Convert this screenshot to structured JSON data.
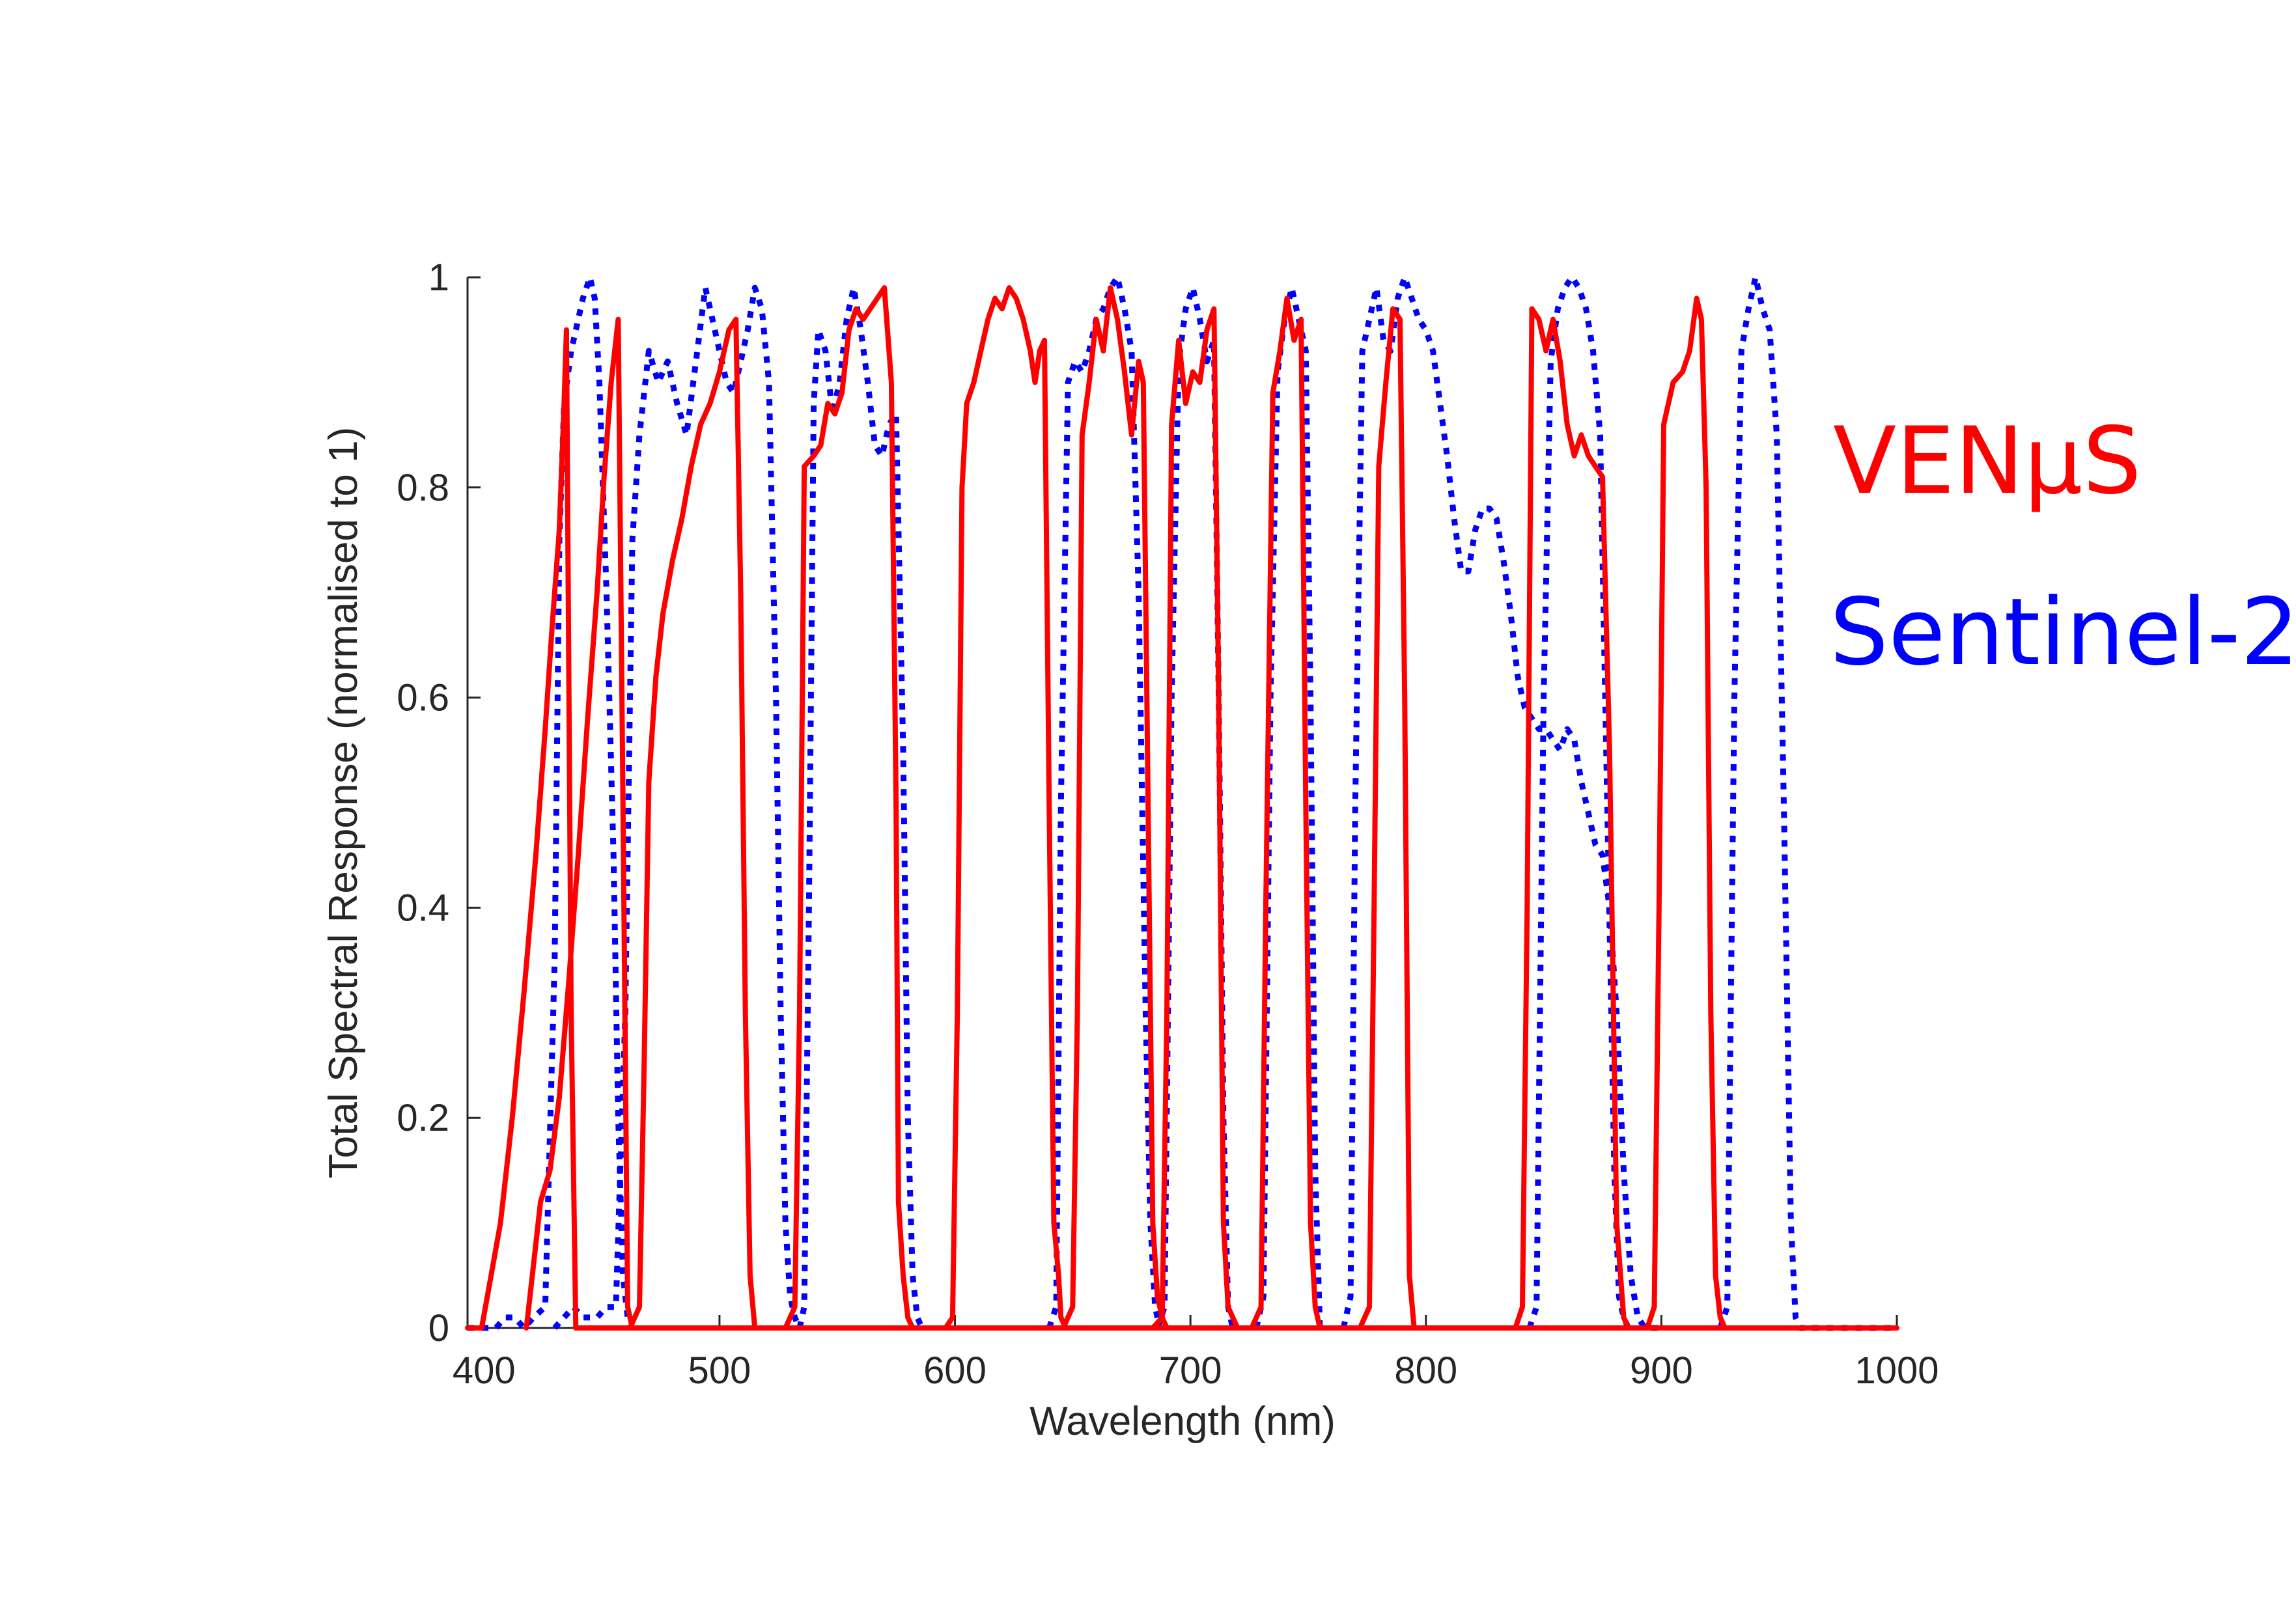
{
  "chart_data": {
    "type": "line",
    "title": "",
    "xlabel": "Wavelength (nm)",
    "ylabel": "Total Spectral Response (normalised to 1)",
    "xlim": [
      393,
      1000
    ],
    "ylim": [
      0,
      1
    ],
    "x_ticks": [
      400,
      500,
      600,
      700,
      800,
      900,
      1000
    ],
    "x_tick_labels": [
      "400",
      "500",
      "600",
      "700",
      "800",
      "900",
      "1000"
    ],
    "y_ticks": [
      0,
      0.2,
      0.4,
      0.6,
      0.8,
      1
    ],
    "y_tick_labels": [
      "0",
      "0.2",
      "0.4",
      "0.6",
      "0.8",
      "1"
    ],
    "grid": false,
    "legend_position": "right",
    "series": [
      {
        "name": "VENμS",
        "color": "#ff0000",
        "line_style": "solid",
        "bands": [
          {
            "x": [
              393,
              399,
              403,
              407,
              412,
              417,
              422,
              426,
              429,
              432,
              434,
              435,
              437,
              439,
              441,
              1000
            ],
            "y": [
              0,
              0,
              0.05,
              0.1,
              0.2,
              0.32,
              0.45,
              0.57,
              0.67,
              0.76,
              0.88,
              0.95,
              0.3,
              0,
              0,
              0
            ]
          },
          {
            "x": [
              418,
              421,
              424,
              428,
              432,
              436,
              440,
              444,
              448,
              451,
              454,
              457,
              459,
              461,
              463
            ],
            "y": [
              0,
              0.06,
              0.12,
              0.15,
              0.22,
              0.33,
              0.45,
              0.58,
              0.7,
              0.81,
              0.9,
              0.96,
              0.5,
              0.02,
              0
            ]
          },
          {
            "x": [
              462,
              466,
              468,
              470,
              473,
              476,
              480,
              484,
              488,
              492,
              496,
              500,
              504,
              507,
              509,
              511,
              513,
              515
            ],
            "y": [
              0,
              0.02,
              0.25,
              0.52,
              0.62,
              0.68,
              0.73,
              0.77,
              0.82,
              0.86,
              0.88,
              0.91,
              0.95,
              0.96,
              0.7,
              0.3,
              0.05,
              0
            ]
          },
          {
            "x": [
              528,
              532,
              534,
              536,
              540,
              543,
              546,
              549,
              552,
              555,
              558,
              561,
              564,
              567,
              570,
              573,
              575,
              576,
              578,
              580,
              582
            ],
            "y": [
              0,
              0.02,
              0.3,
              0.82,
              0.83,
              0.84,
              0.88,
              0.87,
              0.89,
              0.95,
              0.97,
              0.96,
              0.97,
              0.98,
              0.99,
              0.9,
              0.5,
              0.12,
              0.05,
              0.01,
              0
            ]
          },
          {
            "x": [
              596,
              599,
              601,
              603,
              605,
              608,
              611,
              614,
              617,
              620,
              623,
              626,
              629,
              632,
              634,
              636,
              638,
              640,
              642,
              644,
              645,
              647
            ],
            "y": [
              0,
              0.01,
              0.3,
              0.8,
              0.88,
              0.9,
              0.93,
              0.96,
              0.98,
              0.97,
              0.99,
              0.98,
              0.96,
              0.93,
              0.9,
              0.93,
              0.94,
              0.5,
              0.1,
              0.05,
              0.01,
              0
            ]
          },
          {
            "x": [
              646,
              650,
              652,
              654,
              657,
              660,
              663,
              666,
              669,
              672,
              675,
              678,
              680,
              682,
              684,
              686,
              688,
              690,
              692
            ],
            "y": [
              0,
              0.02,
              0.3,
              0.85,
              0.9,
              0.96,
              0.93,
              0.99,
              0.96,
              0.91,
              0.85,
              0.92,
              0.9,
              0.5,
              0.1,
              0.03,
              0.01,
              0,
              0
            ]
          },
          {
            "x": [
              684,
              688,
              690,
              692,
              695,
              698,
              701,
              704,
              707,
              710,
              712,
              714,
              716,
              718,
              720
            ],
            "y": [
              0,
              0.01,
              0.3,
              0.86,
              0.94,
              0.88,
              0.91,
              0.9,
              0.95,
              0.97,
              0.6,
              0.1,
              0.02,
              0.01,
              0
            ]
          },
          {
            "x": [
              726,
              730,
              732,
              735,
              738,
              741,
              744,
              747,
              749,
              751,
              753,
              755
            ],
            "y": [
              0,
              0.02,
              0.4,
              0.89,
              0.93,
              0.98,
              0.94,
              0.96,
              0.5,
              0.1,
              0.02,
              0
            ]
          },
          {
            "x": [
              772,
              776,
              778,
              780,
              783,
              786,
              789,
              791,
              793,
              795
            ],
            "y": [
              0,
              0.02,
              0.4,
              0.82,
              0.9,
              0.97,
              0.96,
              0.6,
              0.05,
              0
            ]
          },
          {
            "x": [
              838,
              841,
              843,
              845,
              848,
              851,
              854,
              857,
              860,
              863,
              866,
              869,
              872,
              875,
              878,
              881,
              884,
              886
            ],
            "y": [
              0,
              0.02,
              0.4,
              0.97,
              0.96,
              0.93,
              0.96,
              0.92,
              0.86,
              0.83,
              0.85,
              0.83,
              0.82,
              0.81,
              0.55,
              0.1,
              0.01,
              0
            ]
          },
          {
            "x": [
              894,
              897,
              899,
              901,
              905,
              909,
              912,
              915,
              917,
              919,
              921,
              923,
              925,
              927,
              929,
              931,
              933,
              935,
              937,
              940
            ],
            "y": [
              0,
              0.02,
              0.4,
              0.86,
              0.9,
              0.91,
              0.93,
              0.98,
              0.96,
              0.8,
              0.3,
              0.05,
              0.01,
              0,
              0,
              0,
              0,
              0,
              0,
              0
            ]
          }
        ]
      },
      {
        "name": "Sentinel-2",
        "color": "#0000ff",
        "line_style": "dotted",
        "bands": [
          {
            "x": [
              393,
              400,
              405,
              409,
              413,
              417,
              421,
              426,
              430,
              432,
              434,
              437,
              440,
              442,
              445,
              447,
              449,
              452,
              455,
              457,
              459,
              461,
              463
            ],
            "y": [
              0,
              0,
              0,
              0.01,
              0.01,
              0,
              0.01,
              0.02,
              0.35,
              0.75,
              0.88,
              0.93,
              0.96,
              0.98,
              1,
              0.98,
              0.9,
              0.7,
              0.45,
              0.2,
              0.05,
              0.01,
              0
            ]
          },
          {
            "x": [
              430,
              438,
              442,
              448,
              452,
              456,
              460,
              463,
              466,
              470,
              474,
              478,
              482,
              486,
              490,
              494,
              497,
              500,
              503,
              506,
              509,
              512,
              515,
              518,
              521,
              524,
              526,
              528,
              530,
              532,
              534
            ],
            "y": [
              0,
              0.02,
              0.01,
              0.01,
              0.02,
              0.02,
              0.3,
              0.75,
              0.85,
              0.93,
              0.9,
              0.92,
              0.88,
              0.85,
              0.92,
              0.99,
              0.96,
              0.93,
              0.9,
              0.89,
              0.92,
              0.95,
              0.99,
              0.97,
              0.9,
              0.6,
              0.3,
              0.1,
              0.03,
              0.01,
              0
            ]
          },
          {
            "x": [
              534,
              536,
              538,
              540,
              542,
              545,
              548,
              551,
              554,
              557,
              560,
              563,
              566,
              569,
              572,
              575,
              578,
              580,
              582,
              584,
              586
            ],
            "y": [
              0,
              0.02,
              0.4,
              0.88,
              0.95,
              0.93,
              0.87,
              0.9,
              0.96,
              0.99,
              0.95,
              0.9,
              0.84,
              0.83,
              0.86,
              0.87,
              0.55,
              0.2,
              0.05,
              0.01,
              0
            ]
          },
          {
            "x": [
              640,
              643,
              645,
              648,
              651,
              654,
              657,
              660,
              663,
              666,
              669,
              672,
              675,
              678,
              681,
              683,
              685,
              687
            ],
            "y": [
              0,
              0.02,
              0.5,
              0.9,
              0.92,
              0.91,
              0.93,
              0.96,
              0.97,
              0.99,
              1,
              0.97,
              0.93,
              0.7,
              0.3,
              0.1,
              0.02,
              0
            ]
          },
          {
            "x": [
              686,
              689,
              692,
              695,
              698,
              701,
              704,
              707,
              710,
              712,
              714,
              716,
              718
            ],
            "y": [
              0,
              0.02,
              0.6,
              0.92,
              0.97,
              0.99,
              0.96,
              0.92,
              0.94,
              0.6,
              0.2,
              0.02,
              0
            ]
          },
          {
            "x": [
              728,
              731,
              734,
              737,
              740,
              743,
              746,
              749,
              751,
              753,
              755
            ],
            "y": [
              0,
              0.03,
              0.6,
              0.91,
              0.96,
              0.99,
              0.96,
              0.93,
              0.6,
              0.15,
              0
            ]
          },
          {
            "x": [
              765,
              768,
              770,
              773,
              776,
              779,
              782,
              785,
              788,
              791,
              794,
              797,
              800,
              803,
              806,
              809,
              812,
              815,
              818,
              821,
              824,
              827,
              830,
              833,
              836,
              839,
              842,
              845,
              848,
              851,
              854,
              857,
              860,
              863,
              866,
              869,
              872,
              875,
              878,
              881,
              884,
              887,
              890,
              893,
              896,
              899
            ],
            "y": [
              0,
              0.03,
              0.5,
              0.93,
              0.96,
              0.99,
              0.94,
              0.93,
              0.98,
              1,
              0.98,
              0.96,
              0.95,
              0.93,
              0.88,
              0.83,
              0.77,
              0.72,
              0.72,
              0.76,
              0.78,
              0.78,
              0.77,
              0.73,
              0.68,
              0.62,
              0.59,
              0.58,
              0.57,
              0.57,
              0.56,
              0.55,
              0.57,
              0.56,
              0.52,
              0.49,
              0.46,
              0.45,
              0.4,
              0.3,
              0.15,
              0.05,
              0.01,
              0,
              0,
              0
            ]
          },
          {
            "x": [
              844,
              847,
              850,
              853,
              856,
              859,
              862,
              865,
              868,
              871,
              874,
              877,
              880,
              882,
              884,
              886
            ],
            "y": [
              0,
              0.02,
              0.6,
              0.92,
              0.97,
              0.99,
              1,
              0.99,
              0.97,
              0.93,
              0.85,
              0.5,
              0.15,
              0.03,
              0.01,
              0
            ]
          },
          {
            "x": [
              925,
              928,
              931,
              934,
              937,
              940,
              943,
              946,
              949,
              952,
              955,
              957,
              959,
              1000
            ],
            "y": [
              0,
              0.02,
              0.6,
              0.93,
              0.97,
              1,
              0.97,
              0.95,
              0.85,
              0.5,
              0.1,
              0.01,
              0,
              0
            ]
          }
        ]
      }
    ]
  }
}
